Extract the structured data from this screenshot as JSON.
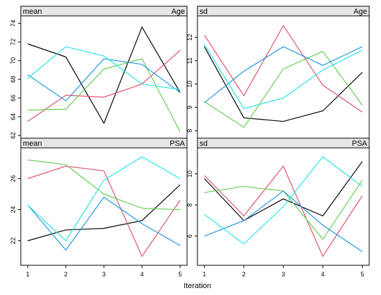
{
  "chart_data": {
    "type": "line",
    "xlabel": "Iteration",
    "x": [
      1,
      2,
      3,
      4,
      5
    ],
    "xlim": [
      1,
      5
    ],
    "layout_note_words": "2x2 lattice of panels",
    "series_colors": [
      "#000000",
      "#df536b",
      "#61d04f",
      "#2297e6",
      "#28e2e5"
    ],
    "panels": [
      {
        "id": "mean-age",
        "stat": "mean",
        "variable": "Age",
        "ylim": [
          62,
          74.5
        ],
        "yticks": [
          62,
          64,
          66,
          68,
          70,
          72,
          74
        ],
        "series": [
          {
            "color": "#000000",
            "values": [
              71.8,
              70.4,
              63.3,
              73.6,
              66.6
            ]
          },
          {
            "color": "#df536b",
            "values": [
              63.5,
              66.3,
              66.1,
              67.5,
              71.1
            ]
          },
          {
            "color": "#61d04f",
            "values": [
              64.7,
              64.8,
              69.1,
              70.2,
              62.4
            ]
          },
          {
            "color": "#2297e6",
            "values": [
              68.5,
              65.7,
              70.2,
              69.6,
              66.6
            ]
          },
          {
            "color": "#28e2e5",
            "values": [
              68.1,
              71.5,
              70.5,
              67.5,
              66.9
            ]
          }
        ]
      },
      {
        "id": "sd-age",
        "stat": "sd",
        "variable": "Age",
        "ylim": [
          7.8,
          12.8
        ],
        "yticks": [
          8,
          9,
          10,
          11,
          12
        ],
        "series": [
          {
            "color": "#000000",
            "values": [
              11.6,
              8.55,
              8.4,
              8.85,
              10.5
            ]
          },
          {
            "color": "#df536b",
            "values": [
              12.1,
              9.5,
              12.5,
              9.95,
              8.8
            ]
          },
          {
            "color": "#61d04f",
            "values": [
              9.25,
              8.15,
              10.65,
              11.4,
              9.1
            ]
          },
          {
            "color": "#2297e6",
            "values": [
              9.2,
              10.55,
              11.6,
              10.8,
              11.6
            ]
          },
          {
            "color": "#28e2e5",
            "values": [
              11.7,
              8.95,
              9.4,
              10.6,
              11.45
            ]
          }
        ]
      },
      {
        "id": "mean-psa",
        "stat": "mean",
        "variable": "PSA",
        "ylim": [
          20.6,
          27.8
        ],
        "yticks": [
          22,
          24,
          26
        ],
        "series": [
          {
            "color": "#000000",
            "values": [
              22.0,
              22.7,
              22.8,
              23.3,
              25.6
            ]
          },
          {
            "color": "#df536b",
            "values": [
              26.0,
              26.8,
              26.5,
              21.0,
              24.6
            ]
          },
          {
            "color": "#61d04f",
            "values": [
              27.2,
              26.9,
              25.0,
              24.1,
              24.0
            ]
          },
          {
            "color": "#2297e6",
            "values": [
              24.3,
              21.4,
              24.8,
              23.1,
              21.7
            ]
          },
          {
            "color": "#28e2e5",
            "values": [
              24.3,
              22.0,
              25.9,
              27.4,
              26.0
            ]
          }
        ]
      },
      {
        "id": "sd-psa",
        "stat": "sd",
        "variable": "PSA",
        "ylim": [
          4.3,
          11.5
        ],
        "yticks": [
          6,
          8,
          10
        ],
        "series": [
          {
            "color": "#000000",
            "values": [
              9.7,
              7.0,
              8.4,
              7.3,
              10.8
            ]
          },
          {
            "color": "#df536b",
            "values": [
              9.9,
              7.3,
              10.5,
              4.7,
              8.6
            ]
          },
          {
            "color": "#61d04f",
            "values": [
              8.8,
              9.2,
              8.9,
              5.8,
              9.6
            ]
          },
          {
            "color": "#2297e6",
            "values": [
              6.0,
              7.0,
              8.9,
              6.7,
              5.0
            ]
          },
          {
            "color": "#28e2e5",
            "values": [
              7.4,
              5.5,
              7.9,
              11.1,
              9.2
            ]
          }
        ]
      }
    ]
  }
}
